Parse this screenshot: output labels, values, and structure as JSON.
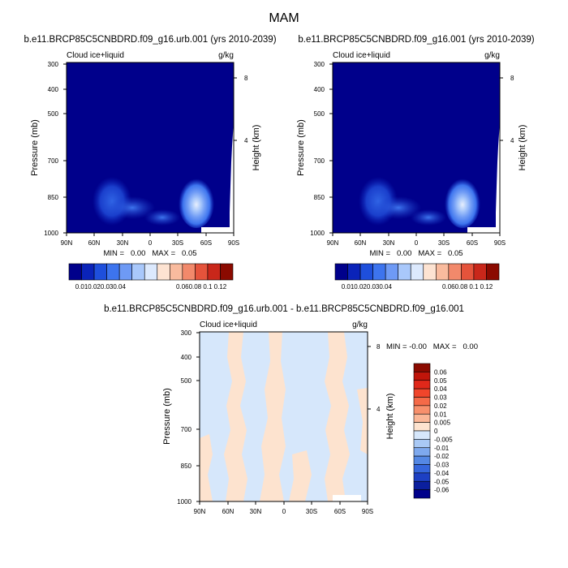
{
  "page_title": "MAM",
  "chart_data": [
    {
      "type": "heatmap",
      "title": "b.e11.BRCP85C5CNBDRD.f09_g16.urb.001 (yrs 2010-2039)",
      "left_label": "Cloud ice+liquid",
      "right_label": "g/kg",
      "xlabel": "",
      "ylabel": "Pressure (mb)",
      "ylabel_right": "Height (km)",
      "x_ticks": [
        "90N",
        "60N",
        "30N",
        "0",
        "30S",
        "60S",
        "90S"
      ],
      "y_ticks": [
        "300",
        "400",
        "500",
        "700",
        "850",
        "1000"
      ],
      "y_ticks_right": [
        "8",
        "4"
      ],
      "x_range": [
        90,
        -90
      ],
      "y_range": [
        1000,
        300
      ],
      "y_scale": "log-pressure",
      "min_max_text": "MIN =   0.00   MAX =   0.05",
      "colorbar_levels": [
        "0.01",
        "0.02",
        "0.03",
        "0.04",
        "0.06",
        "0.08",
        "0.1",
        "0.12"
      ],
      "colorbar_colors": [
        "#00008b",
        "#0a23b9",
        "#1e4fdc",
        "#3d74ee",
        "#6e9af5",
        "#a9c8fb",
        "#dce9fd",
        "#fde3d2",
        "#f9bb9e",
        "#f2896b",
        "#e5533b",
        "#c9271a",
        "#8b0a00"
      ]
    },
    {
      "type": "heatmap",
      "title": "b.e11.BRCP85C5CNBDRD.f09_g16.001 (yrs 2010-2039)",
      "left_label": "Cloud ice+liquid",
      "right_label": "g/kg",
      "xlabel": "",
      "ylabel": "Pressure (mb)",
      "ylabel_right": "Height (km)",
      "x_ticks": [
        "90N",
        "60N",
        "30N",
        "0",
        "30S",
        "60S",
        "90S"
      ],
      "y_ticks": [
        "300",
        "400",
        "500",
        "700",
        "850",
        "1000"
      ],
      "y_ticks_right": [
        "8",
        "4"
      ],
      "x_range": [
        90,
        -90
      ],
      "y_range": [
        1000,
        300
      ],
      "y_scale": "log-pressure",
      "min_max_text": "MIN =   0.00   MAX =   0.05",
      "colorbar_levels": [
        "0.01",
        "0.02",
        "0.03",
        "0.04",
        "0.06",
        "0.08",
        "0.1",
        "0.12"
      ],
      "colorbar_colors": [
        "#00008b",
        "#0a23b9",
        "#1e4fdc",
        "#3d74ee",
        "#6e9af5",
        "#a9c8fb",
        "#dce9fd",
        "#fde3d2",
        "#f9bb9e",
        "#f2896b",
        "#e5533b",
        "#c9271a",
        "#8b0a00"
      ]
    },
    {
      "type": "heatmap",
      "title": "b.e11.BRCP85C5CNBDRD.f09_g16.urb.001 - b.e11.BRCP85C5CNBDRD.f09_g16.001",
      "left_label": "Cloud ice+liquid",
      "right_label": "g/kg",
      "xlabel": "",
      "ylabel": "Pressure (mb)",
      "ylabel_right": "Height (km)",
      "x_ticks": [
        "90N",
        "60N",
        "30N",
        "0",
        "30S",
        "60S",
        "90S"
      ],
      "y_ticks": [
        "300",
        "400",
        "500",
        "700",
        "850",
        "1000"
      ],
      "y_ticks_right": [
        "8",
        "4"
      ],
      "x_range": [
        90,
        -90
      ],
      "y_range": [
        1000,
        300
      ],
      "y_scale": "log-pressure",
      "min_max_text": "MIN = -0.00   MAX =   0.00",
      "colorbar_levels": [
        "0.06",
        "0.05",
        "0.04",
        "0.03",
        "0.02",
        "0.01",
        "0.005",
        "0",
        "-0.005",
        "-0.01",
        "-0.02",
        "-0.03",
        "-0.04",
        "-0.05",
        "-0.06"
      ],
      "colorbar_colors": [
        "#8b0a00",
        "#c0150a",
        "#e0281a",
        "#f0452b",
        "#f56a48",
        "#f8906c",
        "#fbb797",
        "#fde3cf",
        "#d6e7fb",
        "#a9c9f5",
        "#7ea9ee",
        "#5488e4",
        "#3566dc",
        "#1d40c3",
        "#0b1f9e",
        "#00008b"
      ]
    }
  ]
}
